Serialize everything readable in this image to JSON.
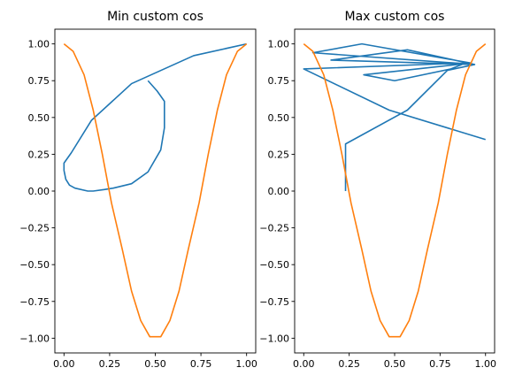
{
  "chart_data": [
    {
      "type": "line",
      "title": "Min custom cos",
      "xlabel": "",
      "ylabel": "",
      "xlim": [
        -0.05,
        1.05
      ],
      "ylim": [
        -1.1,
        1.1
      ],
      "xticks": [
        0.0,
        0.25,
        0.5,
        0.75,
        1.0
      ],
      "xtick_labels": [
        "0.00",
        "0.25",
        "0.50",
        "0.75",
        "1.00"
      ],
      "yticks": [
        -1.0,
        -0.75,
        -0.5,
        -0.25,
        0.0,
        0.25,
        0.5,
        0.75,
        1.0
      ],
      "ytick_labels": [
        "−1.00",
        "−0.75",
        "−0.50",
        "−0.25",
        "0.00",
        "0.25",
        "0.50",
        "0.75",
        "1.00"
      ],
      "grid": false,
      "series": [
        {
          "color": "#1f77b4",
          "x": [
            0.46,
            0.51,
            0.55,
            0.55,
            0.53,
            0.46,
            0.37,
            0.27,
            0.22,
            0.16,
            0.13,
            0.06,
            0.03,
            0.01,
            0.0,
            0.0,
            0.04,
            0.15,
            0.37,
            0.71,
            1.0
          ],
          "y": [
            0.75,
            0.68,
            0.61,
            0.43,
            0.28,
            0.13,
            0.05,
            0.02,
            0.01,
            0.0,
            0.0,
            0.02,
            0.04,
            0.08,
            0.14,
            0.19,
            0.26,
            0.48,
            0.73,
            0.92,
            1.0
          ]
        },
        {
          "color": "#ff7f0e",
          "x": [
            0.0,
            0.05,
            0.11,
            0.16,
            0.21,
            0.26,
            0.32,
            0.37,
            0.42,
            0.47,
            0.53,
            0.58,
            0.63,
            0.68,
            0.74,
            0.79,
            0.84,
            0.89,
            0.95,
            1.0
          ],
          "y": [
            1.0,
            0.95,
            0.79,
            0.55,
            0.25,
            -0.08,
            -0.4,
            -0.68,
            -0.88,
            -0.99,
            -0.99,
            -0.88,
            -0.68,
            -0.4,
            -0.08,
            0.25,
            0.55,
            0.79,
            0.95,
            1.0
          ]
        }
      ]
    },
    {
      "type": "line",
      "title": "Max custom cos",
      "xlabel": "",
      "ylabel": "",
      "xlim": [
        -0.05,
        1.05
      ],
      "ylim": [
        -1.1,
        1.1
      ],
      "xticks": [
        0.0,
        0.25,
        0.5,
        0.75,
        1.0
      ],
      "xtick_labels": [
        "0.00",
        "0.25",
        "0.50",
        "0.75",
        "1.00"
      ],
      "yticks": [
        -1.0,
        -0.75,
        -0.5,
        -0.25,
        0.0,
        0.25,
        0.5,
        0.75,
        1.0
      ],
      "ytick_labels": [
        "−1.00",
        "−0.75",
        "−0.50",
        "−0.25",
        "0.00",
        "0.25",
        "0.50",
        "0.75",
        "1.00"
      ],
      "grid": false,
      "series": [
        {
          "color": "#1f77b4",
          "x": [
            0.23,
            0.23,
            0.57,
            0.79,
            0.94,
            0.15,
            0.57,
            0.94,
            0.05,
            0.32,
            0.92,
            0.33,
            0.5,
            0.81,
            0.89,
            0.0,
            0.47,
            1.0
          ],
          "y": [
            0.0,
            0.32,
            0.55,
            0.82,
            0.86,
            0.89,
            0.96,
            0.86,
            0.94,
            1.0,
            0.87,
            0.79,
            0.75,
            0.83,
            0.87,
            0.83,
            0.55,
            0.35
          ]
        },
        {
          "color": "#ff7f0e",
          "x": [
            0.0,
            0.05,
            0.11,
            0.16,
            0.21,
            0.26,
            0.32,
            0.37,
            0.42,
            0.47,
            0.53,
            0.58,
            0.63,
            0.68,
            0.74,
            0.79,
            0.84,
            0.89,
            0.95,
            1.0
          ],
          "y": [
            1.0,
            0.95,
            0.79,
            0.55,
            0.25,
            -0.08,
            -0.4,
            -0.68,
            -0.88,
            -0.99,
            -0.99,
            -0.88,
            -0.68,
            -0.4,
            -0.08,
            0.25,
            0.55,
            0.79,
            0.95,
            1.0
          ]
        }
      ]
    }
  ]
}
